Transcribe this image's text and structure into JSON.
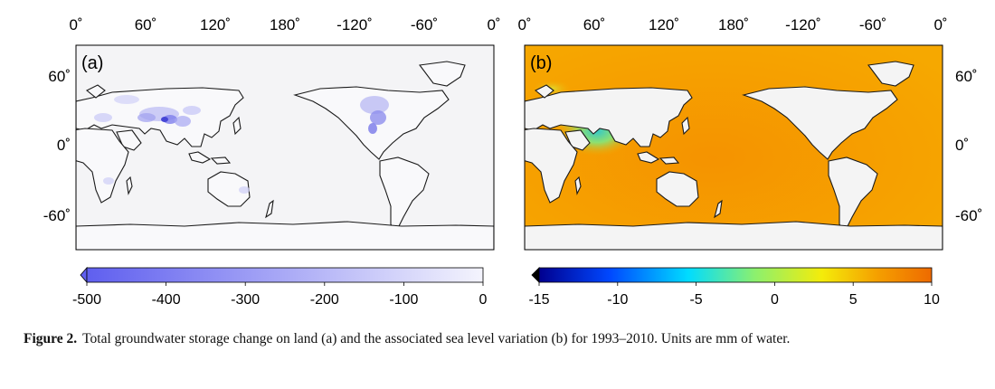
{
  "figure": {
    "caption_label": "Figure 2.",
    "caption_text": "Total groundwater storage change on land (a) and the associated sea level variation (b) for 1993–2010. Units are mm of water."
  },
  "panels": [
    {
      "label": "(a)",
      "top_ticks": [
        "0˚",
        "60˚",
        "120˚",
        "180˚",
        "-120˚",
        "-60˚",
        "0˚"
      ],
      "side_ticks": [
        "60˚",
        "0˚",
        "-60˚"
      ],
      "colorbar": {
        "ticks": [
          "-500",
          "-400",
          "-300",
          "-200",
          "-100",
          "0"
        ],
        "colors": [
          "#5f5fef",
          "#f4f4fd"
        ]
      }
    },
    {
      "label": "(b)",
      "top_ticks": [
        "0˚",
        "60˚",
        "120˚",
        "180˚",
        "-120˚",
        "-60˚",
        "0˚"
      ],
      "side_ticks": [
        "60˚",
        "0˚",
        "-60˚"
      ],
      "colorbar": {
        "ticks": [
          "-15",
          "-10",
          "-5",
          "0",
          "5",
          "10"
        ],
        "colors": [
          "#00008f",
          "#0048ff",
          "#00dcff",
          "#8cf06e",
          "#f4ec0a",
          "#f5a000",
          "#ee6a00"
        ]
      }
    }
  ]
}
